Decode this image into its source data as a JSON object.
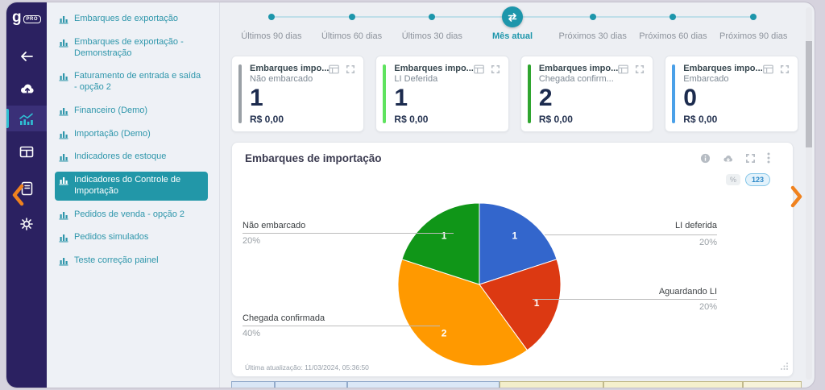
{
  "brand": {
    "logo_letter": "g",
    "badge": "PRO"
  },
  "rail": {
    "icons": [
      "back-arrow",
      "cloud-upload",
      "analytics",
      "data-grid",
      "notes",
      "settings-gear"
    ],
    "active_icon": "analytics",
    "collapse_chevron_color": "#f0821e",
    "background": "#2b2161",
    "accent": "#2fc0d4"
  },
  "sidebar": {
    "items": [
      {
        "label": "Embarques de exportação",
        "active": false
      },
      {
        "label": "Embarques de exportação - Demonstração",
        "active": false
      },
      {
        "label": "Faturamento de entrada e saída - opção 2",
        "active": false
      },
      {
        "label": "Financeiro (Demo)",
        "active": false
      },
      {
        "label": "Importação (Demo)",
        "active": false
      },
      {
        "label": "Indicadores de estoque",
        "active": false
      },
      {
        "label": "Indicadores do Controle de Importação",
        "active": true
      },
      {
        "label": "Pedidos de venda - opção 2",
        "active": false
      },
      {
        "label": "Pedidos simulados",
        "active": false
      },
      {
        "label": "Teste correção painel",
        "active": false
      }
    ],
    "active_bg": "#2297a8",
    "text_color": "#2e96ab"
  },
  "stepper": {
    "steps": [
      "Últimos 90 dias",
      "Últimos 60 dias",
      "Últimos 30 dias",
      "Mês atual",
      "Próximos 30 dias",
      "Próximos 60 dias",
      "Próximos 90 dias"
    ],
    "active_index": 3,
    "accent": "#1d96ab"
  },
  "cards": [
    {
      "title": "Embarques impo...",
      "subtitle": "Não embarcado",
      "value": "1",
      "amount": "R$ 0,00",
      "accent": "#9aa0a6"
    },
    {
      "title": "Embarques impo...",
      "subtitle": "LI Deferida",
      "value": "1",
      "amount": "R$ 0,00",
      "accent": "#5fe35f"
    },
    {
      "title": "Embarques impo...",
      "subtitle": "Chegada confirm...",
      "value": "2",
      "amount": "R$ 0,00",
      "accent": "#2fa52f"
    },
    {
      "title": "Embarques impo...",
      "subtitle": "Embarcado",
      "value": "0",
      "amount": "R$ 0,00",
      "accent": "#4aa0e8"
    }
  ],
  "panel": {
    "toggles": {
      "percent": "%",
      "number": "123",
      "active": "number"
    },
    "icons": [
      "info",
      "cloud-download",
      "expand",
      "kebab-menu"
    ]
  },
  "chart_data": {
    "type": "pie",
    "title": "Embarques de importação",
    "slices": [
      {
        "label": "LI deferida",
        "value": 1,
        "percent": 20,
        "percent_label": "20%",
        "color": "#3366cc"
      },
      {
        "label": "Aguardando LI",
        "value": 1,
        "percent": 20,
        "percent_label": "20%",
        "color": "#dc3912"
      },
      {
        "label": "Chegada confirmada",
        "value": 2,
        "percent": 40,
        "percent_label": "40%",
        "color": "#ff9900"
      },
      {
        "label": "Não embarcado",
        "value": 1,
        "percent": 20,
        "percent_label": "20%",
        "color": "#109618"
      }
    ],
    "start_angle_deg": 0,
    "direction": "clockwise",
    "value_labels": "inside-white",
    "legend": "callout-lines"
  },
  "footer": {
    "last_update": "Última atualização: 11/03/2024, 05:36:50"
  },
  "bottom_preview": {
    "cells": [
      {
        "grow": 55,
        "color": "#d9e6f6",
        "border": "#93abcb"
      },
      {
        "grow": 92,
        "color": "#d9e6f6",
        "border": "#93abcb"
      },
      {
        "grow": 196,
        "color": "#dbe8f7",
        "border": "#93abcb"
      },
      {
        "grow": 133,
        "color": "#f3eecb",
        "border": "#c2ba8c"
      },
      {
        "grow": 180,
        "color": "#f5f0cd",
        "border": "#c2ba8c"
      },
      {
        "grow": 74,
        "color": "#f7f3da",
        "border": "#c2ba8c"
      }
    ]
  }
}
